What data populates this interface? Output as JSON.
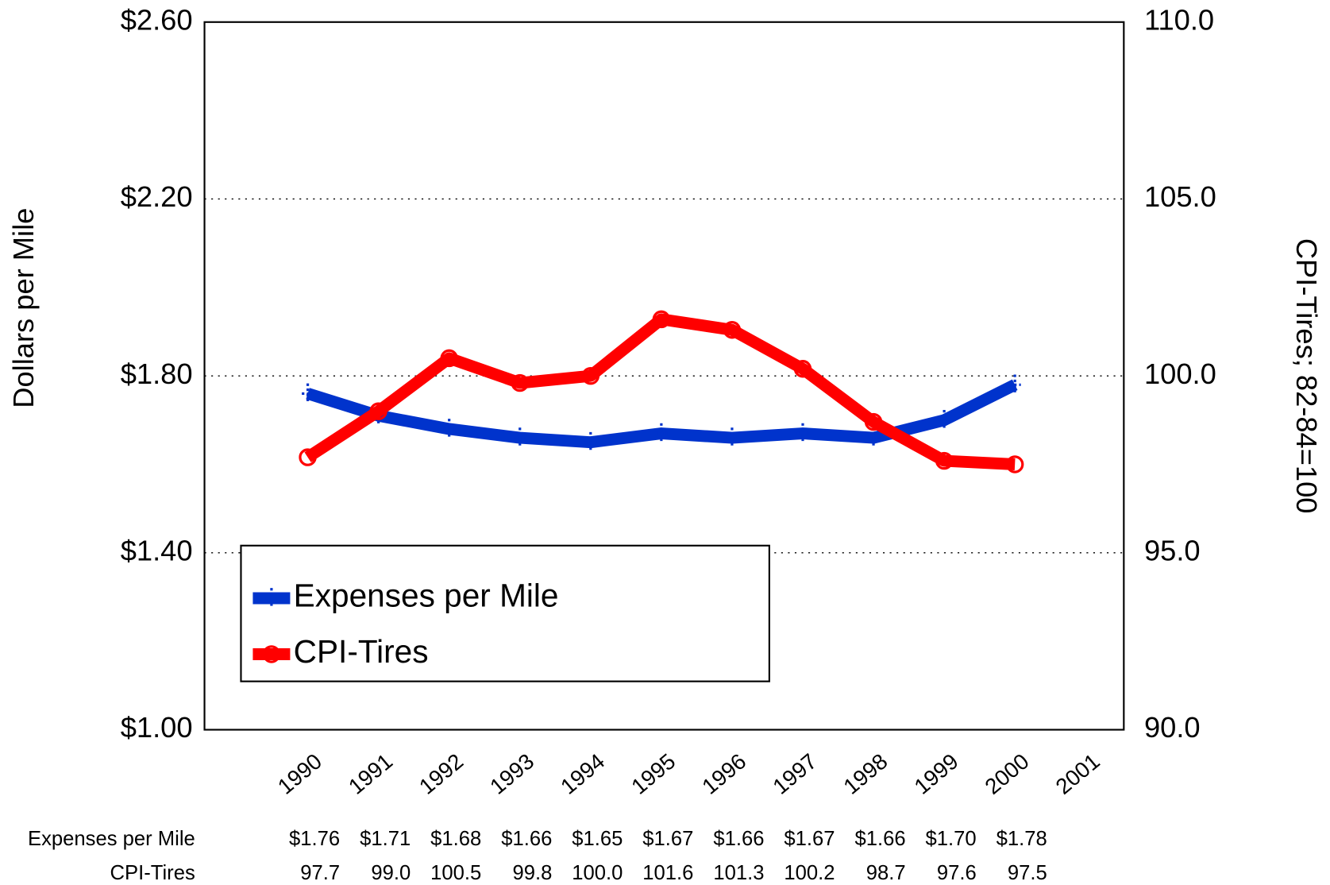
{
  "chart_data": {
    "type": "line",
    "categories": [
      "1990",
      "1991",
      "1992",
      "1993",
      "1994",
      "1995",
      "1996",
      "1997",
      "1998",
      "1999",
      "2000",
      "2001"
    ],
    "y_label": "Dollars per Mile",
    "y2_label": "CPI-Tires; 82-84=100",
    "ylim": [
      1.0,
      2.6
    ],
    "yticks": [
      {
        "value": 1.0,
        "label": "$1.00"
      },
      {
        "value": 1.4,
        "label": "$1.40"
      },
      {
        "value": 1.8,
        "label": "$1.80"
      },
      {
        "value": 2.2,
        "label": "$2.20"
      },
      {
        "value": 2.6,
        "label": "$2.60"
      }
    ],
    "y2lim": [
      90,
      110
    ],
    "y2ticks": [
      {
        "value": 90,
        "label": "90.0"
      },
      {
        "value": 95,
        "label": "95.0"
      },
      {
        "value": 100,
        "label": "100.0"
      },
      {
        "value": 105,
        "label": "105.0"
      },
      {
        "value": 110,
        "label": "110.0"
      }
    ],
    "grid": true,
    "legend": "lower left",
    "series": [
      {
        "name": "Expenses per Mile",
        "color": "#0033cc",
        "marker": "plus",
        "values": [
          1.76,
          1.71,
          1.68,
          1.66,
          1.65,
          1.67,
          1.66,
          1.67,
          1.66,
          1.7,
          1.78,
          null
        ],
        "value_labels": [
          "$1.76",
          "$1.71",
          "$1.68",
          "$1.66",
          "$1.65",
          "$1.67",
          "$1.66",
          "$1.67",
          "$1.66",
          "$1.70",
          "$1.78",
          null
        ]
      },
      {
        "name": "CPI-Tires",
        "color": "#ff0000",
        "marker": "circle",
        "axis": "y2",
        "values": [
          97.7,
          99.0,
          100.5,
          99.8,
          100.0,
          101.6,
          101.3,
          100.2,
          98.7,
          97.6,
          97.5,
          null
        ],
        "value_labels": [
          "97.7",
          "99.0",
          "100.5",
          "99.8",
          "100.0",
          "101.6",
          "101.3",
          "100.2",
          "98.7",
          "97.6",
          "97.5",
          null
        ]
      }
    ]
  }
}
